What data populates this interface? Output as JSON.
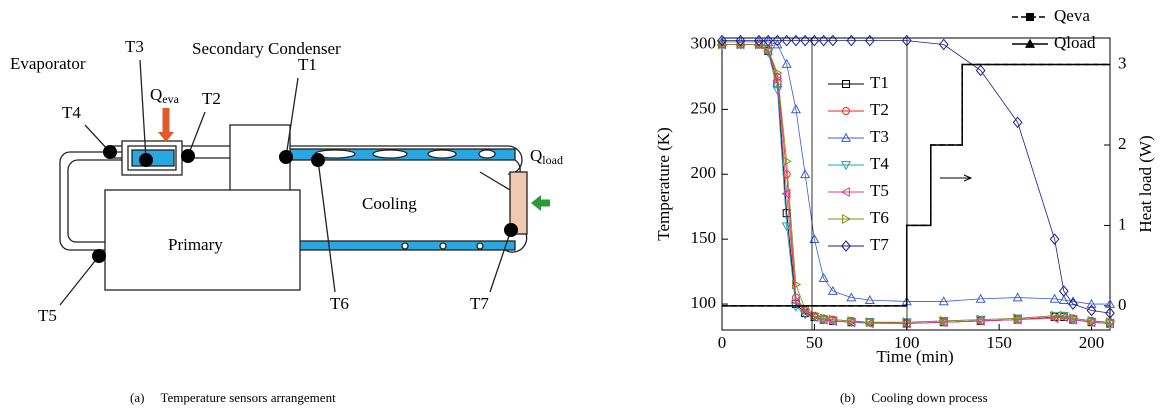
{
  "diagram": {
    "labels": {
      "evaporator": "Evaporator",
      "t3": "T3",
      "secondary": "Secondary Condenser",
      "t4": "T4",
      "qeva": {
        "main": "Q",
        "sub": "eva"
      },
      "t2": "T2",
      "t1": "T1",
      "cooling": "Cooling",
      "qload": {
        "main": "Q",
        "sub": "load"
      },
      "primary": "Primary",
      "t5": "T5",
      "t6": "T6",
      "t7": "T7"
    },
    "caption": "(a)     Temperature sensors arrangement"
  },
  "chart_data": {
    "type": "line",
    "caption": "(b)     Cooling down process",
    "x_label": "Time (min)",
    "y_label": "Temperature (K)",
    "y2_label": "Heat load (W)",
    "xlim": [
      0,
      210
    ],
    "xticks": [
      0,
      50,
      100,
      150,
      200
    ],
    "ylim": [
      80,
      305
    ],
    "yticks": [
      100,
      150,
      200,
      250,
      300
    ],
    "y2lim": [
      -0.3,
      3.33
    ],
    "y2ticks": [
      0,
      1,
      2,
      3
    ],
    "grid": false,
    "x": [
      0,
      10,
      20,
      25,
      30,
      35,
      40,
      45,
      50,
      55,
      60,
      70,
      80,
      100,
      120,
      140,
      160,
      180,
      185,
      190,
      200,
      210
    ],
    "series": [
      {
        "name": "T1",
        "color": "#000000",
        "marker": "square",
        "values": [
          300,
          300,
          300,
          295,
          270,
          170,
          100,
          93,
          90,
          88,
          87,
          86,
          86,
          85,
          86,
          87,
          88,
          90,
          90,
          88,
          86,
          85
        ]
      },
      {
        "name": "T2",
        "color": "#e8261f",
        "marker": "circle",
        "values": [
          300,
          300,
          300,
          296,
          275,
          200,
          105,
          95,
          91,
          89,
          88,
          87,
          86,
          85,
          86,
          87,
          88,
          90,
          91,
          89,
          87,
          86
        ]
      },
      {
        "name": "T3",
        "color": "#3a5fcd",
        "marker": "triangle-up",
        "values": [
          302,
          302,
          302,
          302,
          300,
          285,
          250,
          200,
          150,
          120,
          110,
          105,
          103,
          102,
          102,
          104,
          105,
          104,
          103,
          102,
          100,
          100
        ]
      },
      {
        "name": "T4",
        "color": "#1aa3b8",
        "marker": "triangle-down",
        "values": [
          300,
          300,
          300,
          294,
          265,
          160,
          98,
          92,
          90,
          88,
          87,
          86,
          86,
          86,
          87,
          88,
          89,
          91,
          91,
          88,
          86,
          85
        ]
      },
      {
        "name": "T5",
        "color": "#d0409a",
        "marker": "triangle-left",
        "values": [
          300,
          300,
          300,
          295,
          272,
          185,
          102,
          94,
          90,
          88,
          87,
          86,
          85,
          85,
          86,
          87,
          88,
          89,
          90,
          88,
          86,
          85
        ]
      },
      {
        "name": "T6",
        "color": "#8a8a1a",
        "marker": "triangle-right",
        "values": [
          300,
          300,
          300,
          296,
          278,
          210,
          115,
          96,
          91,
          89,
          88,
          87,
          86,
          86,
          87,
          88,
          89,
          91,
          91,
          89,
          87,
          86
        ]
      },
      {
        "name": "T7",
        "color": "#1c1c8c",
        "marker": "diamond",
        "values": [
          303,
          303,
          303,
          303,
          303,
          303,
          303,
          303,
          303,
          303,
          303,
          303,
          303,
          303,
          300,
          280,
          240,
          150,
          110,
          100,
          95,
          93
        ]
      },
      {
        "name": "Qeva",
        "color": "#000000",
        "marker": "square",
        "axis": "y2",
        "dash": true,
        "x": [
          0,
          100,
          100,
          113,
          113,
          130,
          130,
          210
        ],
        "values": [
          0,
          0,
          1,
          1,
          2,
          2,
          3,
          3
        ]
      },
      {
        "name": "Qload",
        "color": "#000000",
        "marker": "triangle-up",
        "axis": "y2",
        "dash": false,
        "x": [
          0,
          100,
          100,
          113,
          113,
          130,
          130,
          210
        ],
        "values": [
          0,
          0,
          1,
          1,
          2,
          2,
          3,
          3
        ]
      }
    ]
  }
}
